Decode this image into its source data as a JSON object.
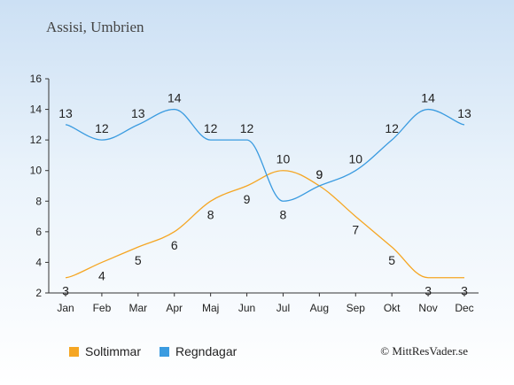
{
  "chart_data": {
    "type": "line",
    "title": "Assisi, Umbrien",
    "categories": [
      "Jan",
      "Feb",
      "Mar",
      "Apr",
      "Maj",
      "Jun",
      "Jul",
      "Aug",
      "Sep",
      "Okt",
      "Nov",
      "Dec"
    ],
    "series": [
      {
        "name": "Soltimmar",
        "color": "#f5a623",
        "values": [
          3,
          4,
          5,
          6,
          8,
          9,
          10,
          9,
          7,
          5,
          3,
          3
        ]
      },
      {
        "name": "Regndagar",
        "color": "#3a9be0",
        "values": [
          13,
          12,
          13,
          14,
          12,
          12,
          8,
          9,
          10,
          12,
          14,
          13
        ]
      }
    ],
    "ylim": [
      2,
      16
    ],
    "yticks": [
      2,
      4,
      6,
      8,
      10,
      12,
      14,
      16
    ],
    "grid": false,
    "legend": "bottom-left"
  },
  "copyright": "© MittResVader.se"
}
